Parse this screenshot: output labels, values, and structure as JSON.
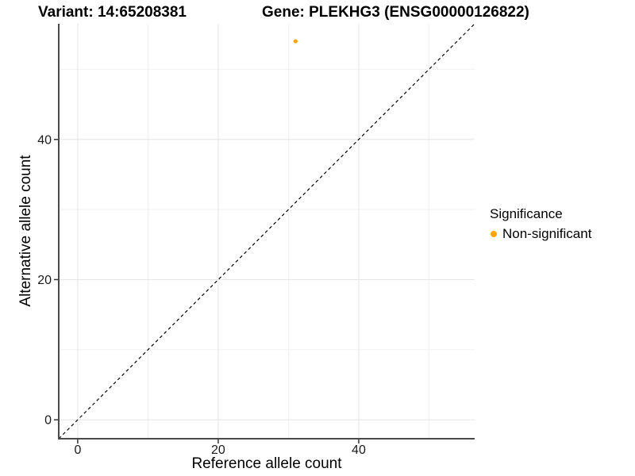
{
  "titles": {
    "variant": "Variant: 14:65208381",
    "gene": "Gene: PLEKHG3 (ENSG00000126822)"
  },
  "legend": {
    "title": "Significance",
    "position": "right",
    "items": [
      {
        "label": "Non-significant",
        "color": "#FFA500"
      }
    ]
  },
  "chart_data": {
    "type": "scatter",
    "title": "Variant: 14:65208381   Gene: PLEKHG3 (ENSG00000126822)",
    "xlabel": "Reference allele count",
    "ylabel": "Alternative allele count",
    "xlim": [
      -2.7,
      56.5
    ],
    "ylim": [
      -2.7,
      56.5
    ],
    "x_ticks": [
      0,
      20,
      40
    ],
    "y_ticks": [
      0,
      20,
      40
    ],
    "x_minor_ticks": [
      10,
      30,
      50
    ],
    "y_minor_ticks": [
      10,
      30,
      50
    ],
    "grid": "major+minor",
    "legend_position": "right",
    "series": [
      {
        "name": "Non-significant",
        "color": "#FFA500",
        "points": [
          {
            "x": 31,
            "y": 54
          }
        ]
      }
    ],
    "reference_line": {
      "kind": "identity y=x",
      "style": "dashed",
      "color": "#000000"
    },
    "style_colors": {
      "grid_major": "#E5E5E5",
      "grid_minor": "#F1F1F1",
      "axis_line": "#4A4A4A",
      "tick_mark": "#333333",
      "tick_text": "#1A1A1A"
    }
  }
}
